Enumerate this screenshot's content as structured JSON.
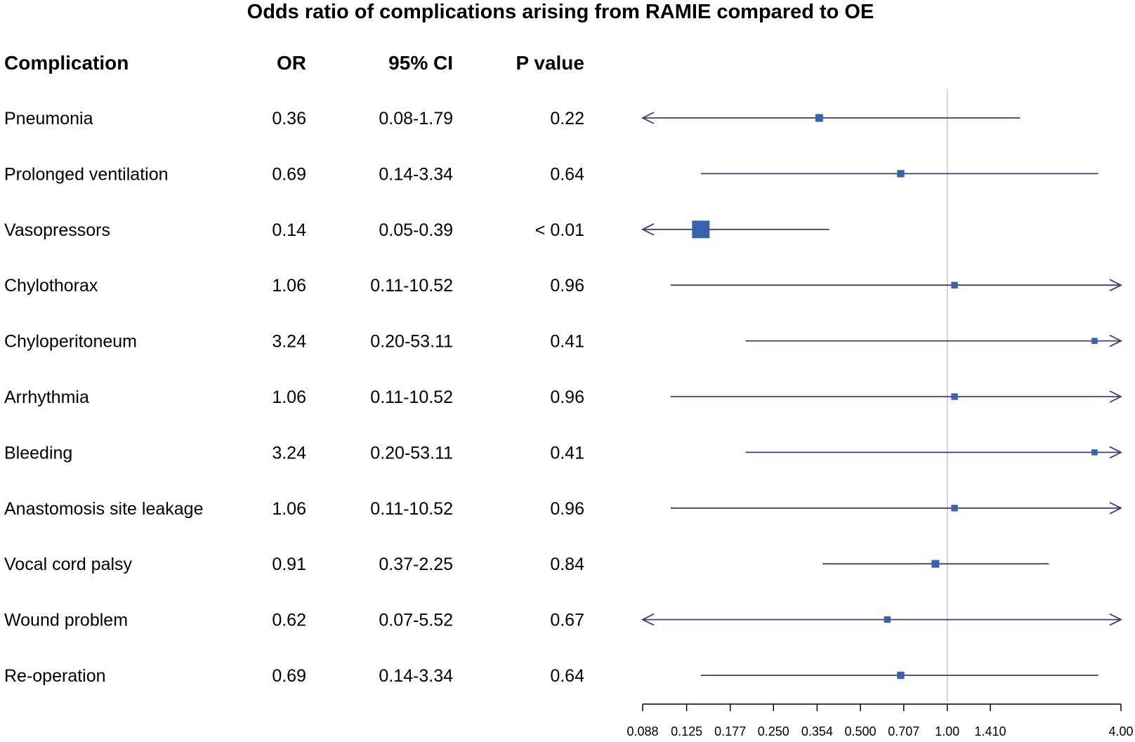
{
  "title": "Odds ratio of complications arising from RAMIE compared to OE",
  "headers": {
    "complication": "Complication",
    "or": "OR",
    "ci": "95% CI",
    "p": "P value"
  },
  "colors": {
    "marker": "#3b62ad",
    "line": "#3a3f73",
    "reference": "#c8c8c8",
    "text": "#111111"
  },
  "chart_data": {
    "type": "forest",
    "scale": "log",
    "xlim": [
      0.088,
      4.0
    ],
    "reference_value": 1.0,
    "x_ticks": [
      0.088,
      0.125,
      0.177,
      0.25,
      0.354,
      0.5,
      0.707,
      1.0,
      1.41,
      4.0
    ],
    "x_tick_labels": [
      "0.088",
      "0.125",
      "0.177",
      "0.250",
      "0.354",
      "0.500",
      "0.707",
      "1.00",
      "1.410",
      "4.00"
    ],
    "rows": [
      {
        "label": "Pneumonia",
        "or": 0.36,
        "lower": 0.08,
        "upper": 1.79,
        "or_text": "0.36",
        "ci_text": "0.08-1.79",
        "p_text": "0.22",
        "weight": 0.3
      },
      {
        "label": "Prolonged ventilation",
        "or": 0.69,
        "lower": 0.14,
        "upper": 3.34,
        "or_text": "0.69",
        "ci_text": "0.14-3.34",
        "p_text": "0.64",
        "weight": 0.27
      },
      {
        "label": "Vasopressors",
        "or": 0.14,
        "lower": 0.05,
        "upper": 0.39,
        "or_text": "0.14",
        "ci_text": "0.05-0.39",
        "p_text": "< 0.01",
        "weight": 1.0
      },
      {
        "label": "Chylothorax",
        "or": 1.06,
        "lower": 0.11,
        "upper": 10.52,
        "or_text": "1.06",
        "ci_text": "0.11-10.52",
        "p_text": "0.96",
        "weight": 0.22
      },
      {
        "label": "Chyloperitoneum",
        "or": 3.24,
        "lower": 0.2,
        "upper": 53.11,
        "or_text": "3.24",
        "ci_text": "0.20-53.11",
        "p_text": "0.41",
        "weight": 0.18
      },
      {
        "label": "Arrhythmia",
        "or": 1.06,
        "lower": 0.11,
        "upper": 10.52,
        "or_text": "1.06",
        "ci_text": "0.11-10.52",
        "p_text": "0.96",
        "weight": 0.22
      },
      {
        "label": "Bleeding",
        "or": 3.24,
        "lower": 0.2,
        "upper": 53.11,
        "or_text": "3.24",
        "ci_text": "0.20-53.11",
        "p_text": "0.41",
        "weight": 0.18
      },
      {
        "label": "Anastomosis site leakage",
        "or": 1.06,
        "lower": 0.11,
        "upper": 10.52,
        "or_text": "1.06",
        "ci_text": "0.11-10.52",
        "p_text": "0.96",
        "weight": 0.22
      },
      {
        "label": "Vocal cord palsy",
        "or": 0.91,
        "lower": 0.37,
        "upper": 2.25,
        "or_text": "0.91",
        "ci_text": "0.37-2.25",
        "p_text": "0.84",
        "weight": 0.3
      },
      {
        "label": "Wound problem",
        "or": 0.62,
        "lower": 0.07,
        "upper": 5.52,
        "or_text": "0.62",
        "ci_text": "0.07-5.52",
        "p_text": "0.67",
        "weight": 0.22
      },
      {
        "label": "Re-operation",
        "or": 0.69,
        "lower": 0.14,
        "upper": 3.34,
        "or_text": "0.69",
        "ci_text": "0.14-3.34",
        "p_text": "0.64",
        "weight": 0.27
      }
    ]
  }
}
